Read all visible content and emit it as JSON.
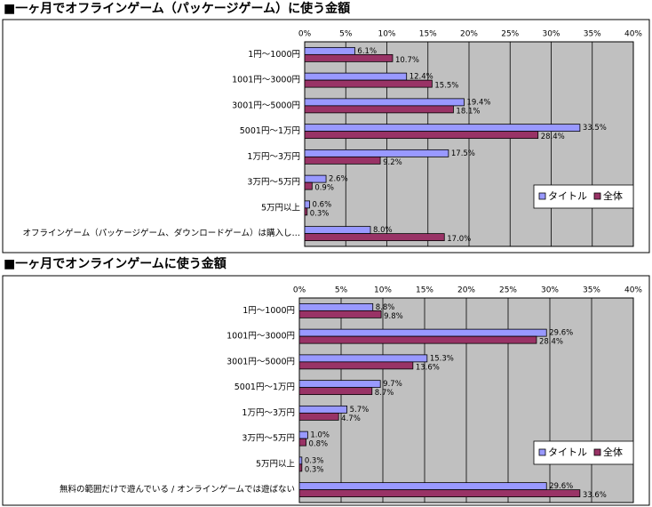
{
  "chart_data": [
    {
      "type": "bar",
      "orientation": "horizontal",
      "title": "■一ヶ月でオフラインゲーム（パッケージゲーム）に使う金額",
      "categories": [
        "1円～1000円",
        "1001円～3000円",
        "3001円～5000円",
        "5001円～1万円",
        "1万円～3万円",
        "3万円～5万円",
        "5万円以上",
        "オフラインゲーム（パッケージゲーム、ダウンロードゲーム）は購入し…"
      ],
      "series": [
        {
          "name": "タイトル",
          "color": "#9999ff",
          "values": [
            6.1,
            12.4,
            19.4,
            33.5,
            17.5,
            2.6,
            0.6,
            8.0
          ],
          "value_labels": [
            "6.1%",
            "12.4%",
            "19.4%",
            "33.5%",
            "17.5%",
            "2.6%",
            "0.6%",
            "8.0%"
          ]
        },
        {
          "name": "全体",
          "color": "#993366",
          "values": [
            10.7,
            15.5,
            18.1,
            28.4,
            9.2,
            0.9,
            0.3,
            17.0
          ],
          "value_labels": [
            "10.7%",
            "15.5%",
            "18.1%",
            "28.4%",
            "9.2%",
            "0.9%",
            "0.3%",
            "17.0%"
          ]
        }
      ],
      "xlim": [
        0,
        40
      ],
      "xticks": [
        {
          "value": 0,
          "label": "0%"
        },
        {
          "value": 5,
          "label": "5%"
        },
        {
          "value": 10,
          "label": "10%"
        },
        {
          "value": 15,
          "label": "15%"
        },
        {
          "value": 20,
          "label": "20%"
        },
        {
          "value": 25,
          "label": "25%"
        },
        {
          "value": 30,
          "label": "30%"
        },
        {
          "value": 35,
          "label": "35%"
        },
        {
          "value": 40,
          "label": "40%"
        }
      ],
      "grid": true,
      "legend": "bottom-right"
    },
    {
      "type": "bar",
      "orientation": "horizontal",
      "title": "■一ヶ月でオンラインゲームに使う金額",
      "categories": [
        "1円～1000円",
        "1001円～3000円",
        "3001円～5000円",
        "5001円～1万円",
        "1万円～3万円",
        "3万円～5万円",
        "5万円以上",
        "無料の範囲だけで遊んでいる / オンラインゲームでは遊ばない"
      ],
      "series": [
        {
          "name": "タイトル",
          "color": "#9999ff",
          "values": [
            8.8,
            29.6,
            15.3,
            9.7,
            5.7,
            1.0,
            0.3,
            29.6
          ],
          "value_labels": [
            "8.8%",
            "29.6%",
            "15.3%",
            "9.7%",
            "5.7%",
            "1.0%",
            "0.3%",
            "29.6%"
          ]
        },
        {
          "name": "全体",
          "color": "#993366",
          "values": [
            9.8,
            28.4,
            13.6,
            8.7,
            4.7,
            0.8,
            0.3,
            33.6
          ],
          "value_labels": [
            "9.8%",
            "28.4%",
            "13.6%",
            "8.7%",
            "4.7%",
            "0.8%",
            "0.3%",
            "33.6%"
          ]
        }
      ],
      "xlim": [
        0,
        40
      ],
      "xticks": [
        {
          "value": 0,
          "label": "0%"
        },
        {
          "value": 5,
          "label": "5%"
        },
        {
          "value": 10,
          "label": "10%"
        },
        {
          "value": 15,
          "label": "15%"
        },
        {
          "value": 20,
          "label": "20%"
        },
        {
          "value": 25,
          "label": "25%"
        },
        {
          "value": 30,
          "label": "30%"
        },
        {
          "value": 35,
          "label": "35%"
        },
        {
          "value": 40,
          "label": "40%"
        }
      ],
      "grid": true,
      "legend": "bottom-right"
    }
  ]
}
